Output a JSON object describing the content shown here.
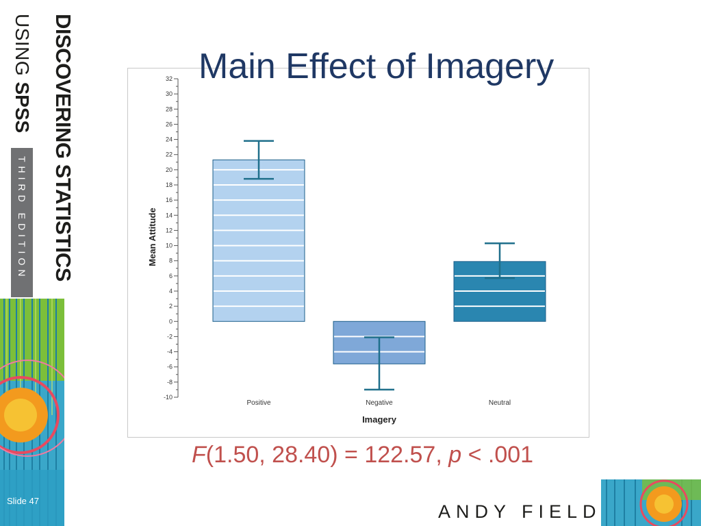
{
  "slide": {
    "title": "Main Effect of Imagery",
    "slide_number": "Slide 47",
    "author": "ANDY FIELD",
    "brand": {
      "line1": "DISCOVERING STATISTICS",
      "line2_light": "USING ",
      "line2_bold": "SPSS",
      "edition": "THIRD EDITION"
    },
    "stat": {
      "f_symbol": "F",
      "f_args": "(1.50, 28.40) = 122.57, ",
      "p_symbol": "p",
      "p_rest": " < .001"
    },
    "colors": {
      "title": "#1f3864",
      "stat": "#c0504d",
      "positive_bar": "#b3d2ef",
      "negative_bar": "#7fa8d8",
      "neutral_bar": "#2a86b0",
      "error_bar": "#1f6f8b"
    }
  },
  "chart_data": {
    "type": "bar",
    "xlabel": "Imagery",
    "ylabel": "Mean Attitude",
    "ylim": [
      -10,
      32
    ],
    "yticks": [
      -10,
      -8,
      -6,
      -4,
      -2,
      0,
      2,
      4,
      6,
      8,
      10,
      12,
      14,
      16,
      18,
      20,
      22,
      24,
      26,
      28,
      30,
      32
    ],
    "categories": [
      "Positive",
      "Negative",
      "Neutral"
    ],
    "values": [
      21.3,
      -5.6,
      7.9
    ],
    "error_lower": [
      18.8,
      -9.0,
      5.7
    ],
    "error_upper": [
      23.8,
      -2.1,
      10.3
    ],
    "grid": false
  }
}
